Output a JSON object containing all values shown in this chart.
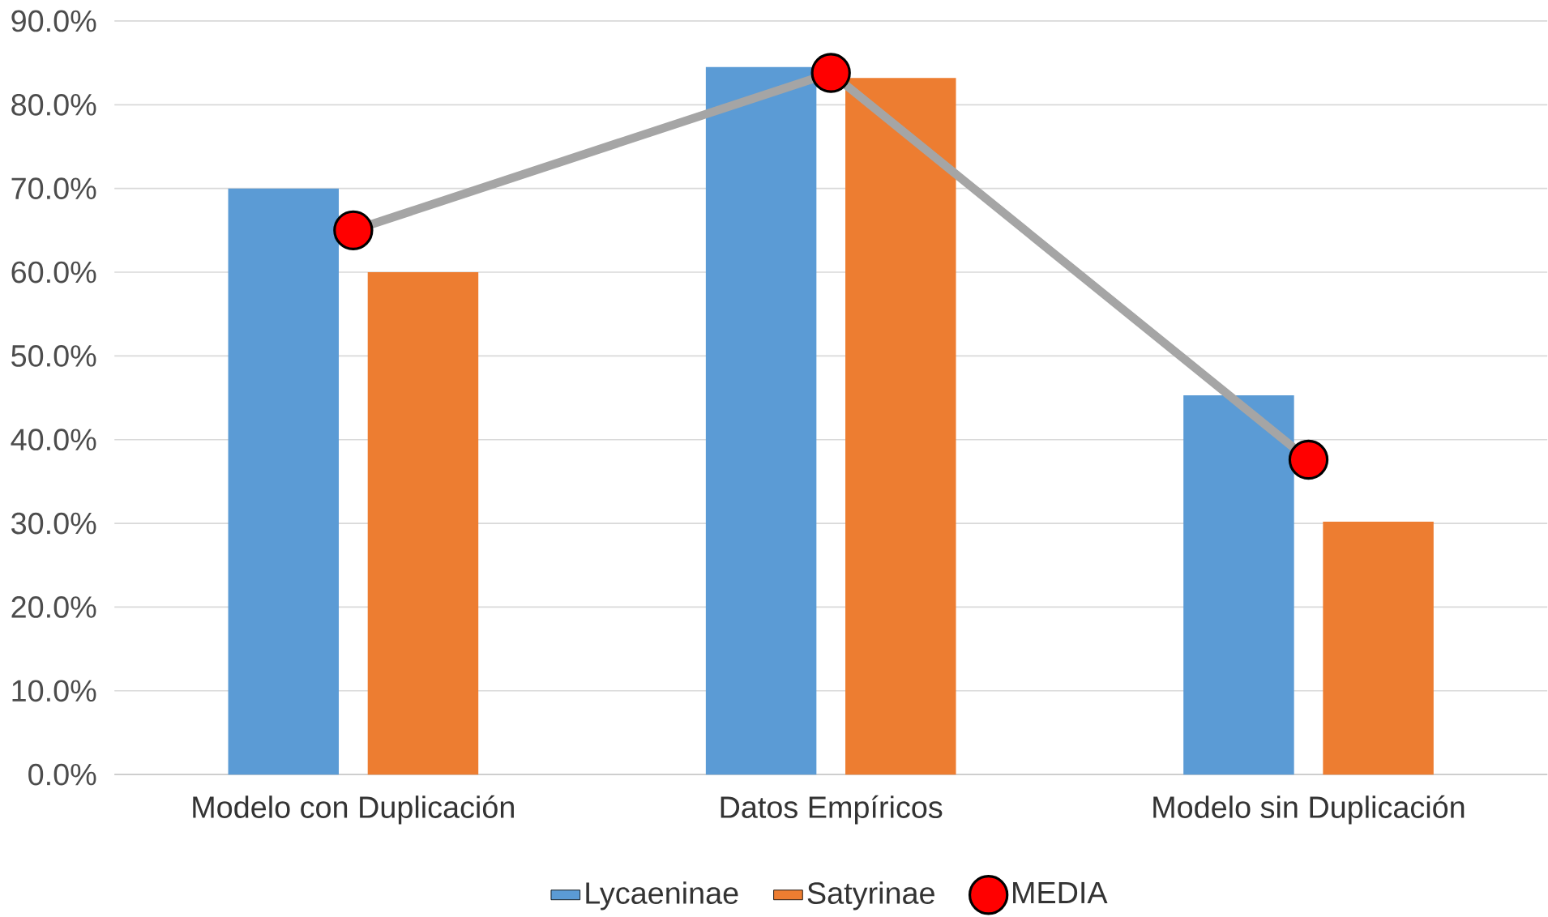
{
  "chart_data": {
    "type": "bar",
    "categories": [
      "Modelo con Duplicación",
      "Datos Empíricos",
      "Modelo sin Duplicación"
    ],
    "series": [
      {
        "name": "Lycaeninae",
        "color": "#5b9bd5",
        "values": [
          70.0,
          84.5,
          45.3
        ]
      },
      {
        "name": "Satyrinae",
        "color": "#ed7d31",
        "values": [
          60.0,
          83.2,
          30.2
        ]
      },
      {
        "name": "MEDIA",
        "type": "line",
        "color": "#a5a5a5",
        "marker": "circle",
        "colors": [
          "#ff0000",
          "#ff0000",
          "#ff0000"
        ],
        "values": [
          65.0,
          83.8,
          37.6
        ]
      }
    ],
    "ylim": [
      0,
      90
    ],
    "yticks": [
      {
        "value": 0,
        "label": "0.0%"
      },
      {
        "value": 10,
        "label": "10.0%"
      },
      {
        "value": 20,
        "label": "20.0%"
      },
      {
        "value": 30,
        "label": "30.0%"
      },
      {
        "value": 40,
        "label": "40.0%"
      },
      {
        "value": 50,
        "label": "50.0%"
      },
      {
        "value": 60,
        "label": "60.0%"
      },
      {
        "value": 70,
        "label": "70.0%"
      },
      {
        "value": 80,
        "label": "80.0%"
      },
      {
        "value": 90,
        "label": "90.0%"
      }
    ],
    "grid": "y",
    "legend": "bottom"
  }
}
